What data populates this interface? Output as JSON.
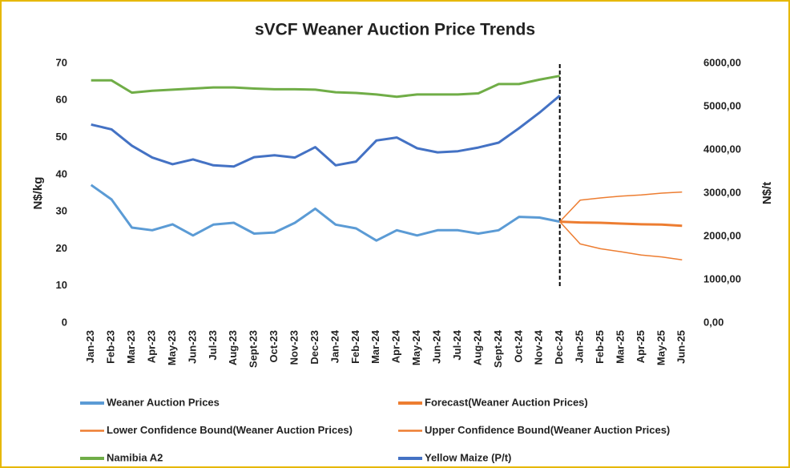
{
  "chart_data": {
    "type": "line",
    "title": "sVCF Weaner Auction Price Trends",
    "y_label": "N$/kg",
    "y2_label": "N$/t",
    "categories": [
      "Jan-23",
      "Feb-23",
      "Mar-23",
      "Apr-23",
      "May-23",
      "Jun-23",
      "Jul-23",
      "Aug-23",
      "Sept-23",
      "Oct-23",
      "Nov-23",
      "Dec-23",
      "Jan-24",
      "Feb-24",
      "Mar-24",
      "Apr-24",
      "May-24",
      "Jun-24",
      "Jul-24",
      "Aug-24",
      "Sept-24",
      "Oct-24",
      "Nov-24",
      "Dec-24",
      "Jan-25",
      "Feb-25",
      "Mar-25",
      "Apr-25",
      "May-25",
      "Jun-25"
    ],
    "ylim": [
      0,
      70
    ],
    "yticks": [
      0,
      10,
      20,
      30,
      40,
      50,
      60,
      70
    ],
    "y2lim": [
      0,
      6000
    ],
    "y2ticks": [
      {
        "value": 0,
        "label": "0,00"
      },
      {
        "value": 1000,
        "label": "1000,00"
      },
      {
        "value": 2000,
        "label": "2000,00"
      },
      {
        "value": 3000,
        "label": "3000,00"
      },
      {
        "value": 4000,
        "label": "4000,00"
      },
      {
        "value": 5000,
        "label": "5000,00"
      },
      {
        "value": 6000,
        "label": "6000,00"
      }
    ],
    "legend": "bottom",
    "series": [
      {
        "name": "Weaner Auction Prices",
        "color": "#5b9bd5",
        "line_width": 3,
        "values": [
          37.2,
          33.3,
          25.7,
          25.0,
          26.6,
          23.6,
          26.5,
          27.0,
          24.1,
          24.4,
          27.0,
          30.8,
          26.5,
          25.5,
          22.2,
          25.0,
          23.6,
          25.0,
          25.0,
          24.1,
          25.0,
          28.6,
          28.4,
          27.3,
          null,
          null,
          null,
          null,
          null,
          null
        ]
      },
      {
        "name": "Forecast(Weaner Auction Prices)",
        "color": "#ed7d31",
        "line_width": 3,
        "values": [
          null,
          null,
          null,
          null,
          null,
          null,
          null,
          null,
          null,
          null,
          null,
          null,
          null,
          null,
          null,
          null,
          null,
          null,
          null,
          null,
          null,
          null,
          null,
          27.3,
          27.1,
          27.0,
          26.8,
          26.6,
          26.5,
          26.2
        ]
      },
      {
        "name": "Lower Confidence Bound(Weaner Auction Prices)",
        "color": "#ed7d31",
        "line_width": 1.5,
        "values": [
          null,
          null,
          null,
          null,
          null,
          null,
          null,
          null,
          null,
          null,
          null,
          null,
          null,
          null,
          null,
          null,
          null,
          null,
          null,
          null,
          null,
          null,
          null,
          27.3,
          21.3,
          20.0,
          19.2,
          18.3,
          17.8,
          17.0
        ]
      },
      {
        "name": "Upper Confidence Bound(Weaner Auction Prices)",
        "color": "#ed7d31",
        "line_width": 1.5,
        "values": [
          null,
          null,
          null,
          null,
          null,
          null,
          null,
          null,
          null,
          null,
          null,
          null,
          null,
          null,
          null,
          null,
          null,
          null,
          null,
          null,
          null,
          null,
          null,
          27.3,
          33.1,
          33.7,
          34.2,
          34.5,
          35.0,
          35.3
        ]
      },
      {
        "name": "Namibia A2",
        "color": "#70ad47",
        "line_width": 3,
        "values": [
          65.4,
          65.4,
          62.1,
          62.6,
          62.9,
          63.2,
          63.5,
          63.5,
          63.2,
          63.0,
          63.0,
          62.9,
          62.2,
          62.0,
          61.6,
          61.0,
          61.6,
          61.6,
          61.6,
          61.9,
          64.4,
          64.4,
          65.6,
          66.6,
          null,
          null,
          null,
          null,
          null,
          null
        ]
      },
      {
        "name": "Yellow Maize (P/t)",
        "color": "#4472c4",
        "line_width": 3,
        "axis": "y2",
        "values": [
          4586,
          4474,
          4097,
          3823,
          3669,
          3780,
          3643,
          3617,
          3831,
          3874,
          3823,
          4063,
          3643,
          3729,
          4217,
          4286,
          4037,
          3943,
          3969,
          4054,
          4166,
          4500,
          4860,
          5254,
          null,
          null,
          null,
          null,
          null,
          null
        ]
      }
    ]
  }
}
